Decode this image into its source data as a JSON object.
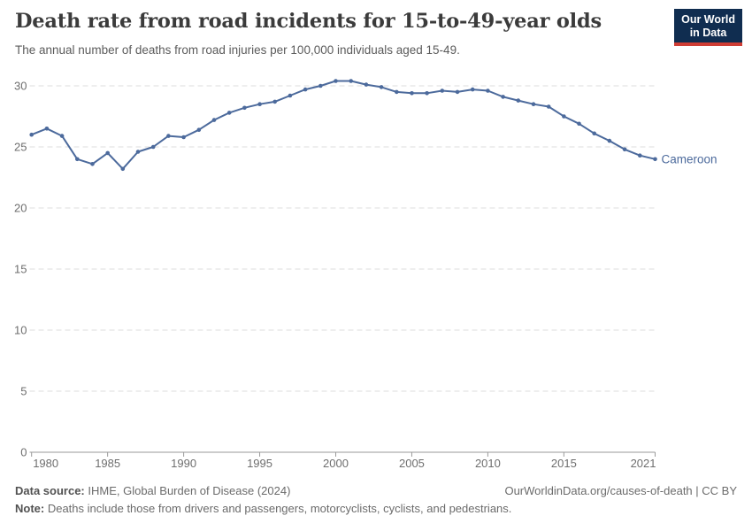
{
  "header": {
    "title": "Death rate from road incidents for 15-to-49-year olds",
    "subtitle": "The annual number of deaths from road injuries per 100,000 individuals aged 15-49.",
    "logo": {
      "line1": "Our World",
      "line2": "in Data",
      "bg_color": "#102d50",
      "accent_color": "#cf3d34"
    }
  },
  "chart_data": {
    "type": "line",
    "title": "Death rate from road incidents for 15-to-49-year olds",
    "xlabel": "",
    "ylabel": "",
    "x": [
      1980,
      1981,
      1982,
      1983,
      1984,
      1985,
      1986,
      1987,
      1988,
      1989,
      1990,
      1991,
      1992,
      1993,
      1994,
      1995,
      1996,
      1997,
      1998,
      1999,
      2000,
      2001,
      2002,
      2003,
      2004,
      2005,
      2006,
      2007,
      2008,
      2009,
      2010,
      2011,
      2012,
      2013,
      2014,
      2015,
      2016,
      2017,
      2018,
      2019,
      2020,
      2021
    ],
    "series": [
      {
        "name": "Cameroon",
        "color": "#4c6a9c",
        "values": [
          26.0,
          26.5,
          25.9,
          24.0,
          23.6,
          24.5,
          23.2,
          24.6,
          25.0,
          25.9,
          25.8,
          26.4,
          27.2,
          27.8,
          28.2,
          28.5,
          28.7,
          29.2,
          29.7,
          30.0,
          30.4,
          30.4,
          30.1,
          29.9,
          29.5,
          29.4,
          29.4,
          29.6,
          29.5,
          29.7,
          29.6,
          29.1,
          28.8,
          28.5,
          28.3,
          27.5,
          26.9,
          26.1,
          25.5,
          24.8,
          24.3,
          24.0
        ]
      }
    ],
    "xticks": [
      1980,
      1985,
      1990,
      1995,
      2000,
      2005,
      2010,
      2015,
      2021
    ],
    "yticks": [
      0,
      5,
      10,
      15,
      20,
      25,
      30
    ],
    "xlim": [
      1980,
      2021
    ],
    "ylim": [
      0,
      31.5
    ],
    "grid": "horizontal-dashed",
    "legend_position": "end-of-line-label",
    "grid_color": "#dedede",
    "axis_color": "#9a9a9a",
    "tick_text_color": "#6e6e6e"
  },
  "footer": {
    "data_source_label": "Data source:",
    "data_source_value": " IHME, Global Burden of Disease (2024)",
    "link": "OurWorldinData.org/causes-of-death | CC BY",
    "note_label": "Note:",
    "note_value": " Deaths include those from drivers and passengers, motorcyclists, cyclists, and pedestrians."
  }
}
